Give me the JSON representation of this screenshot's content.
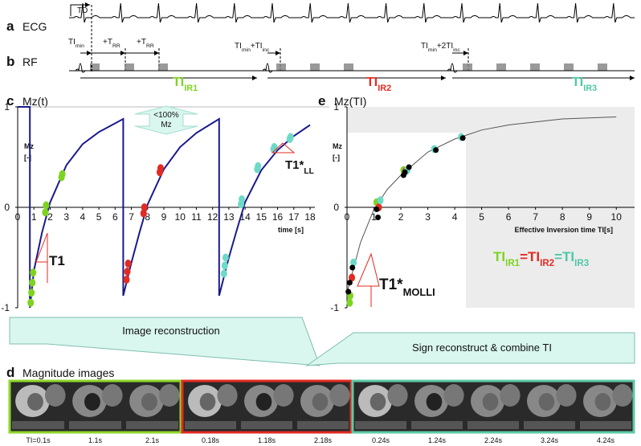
{
  "panel_a": {
    "letter": "a",
    "label": "ECG",
    "delay": "TD"
  },
  "panel_b": {
    "letter": "b",
    "label": "RF",
    "timings": [
      [
        {
          "text": "TI"
        },
        {
          "text": "min",
          "sub": true
        }
      ],
      [
        {
          "text": "+T"
        },
        {
          "text": "RR",
          "sub": true
        }
      ],
      [
        {
          "text": "+T"
        },
        {
          "text": "RR",
          "sub": true
        }
      ],
      [
        {
          "text": "TI"
        },
        {
          "text": "min",
          "sub": true
        },
        {
          "text": "+TI"
        },
        {
          "text": "inc",
          "sub": true
        }
      ],
      [
        {
          "text": "TI"
        },
        {
          "text": "min",
          "sub": true
        },
        {
          "text": "+2TI"
        },
        {
          "text": "inc",
          "sub": true
        }
      ]
    ],
    "inversions": [
      [
        {
          "text": "TI",
          "color": "#7ed321"
        },
        {
          "text": "IR1",
          "sub": true,
          "color": "#7ed321"
        }
      ],
      [
        {
          "text": "TI",
          "color": "#e32b22"
        },
        {
          "text": "IR2",
          "sub": true,
          "color": "#e32b22"
        }
      ],
      [
        {
          "text": "TI",
          "color": "#4fc7a9"
        },
        {
          "text": "IR3",
          "sub": true,
          "color": "#4fc7a9"
        }
      ]
    ]
  },
  "chart_data": [
    {
      "type": "line",
      "letter": "c",
      "title": "Mz(t)",
      "y_label": [
        "Mz",
        "[-]"
      ],
      "x_label": "time [s]",
      "xlim": [
        0,
        18
      ],
      "xticks": [
        0,
        1,
        2,
        3,
        4,
        5,
        6,
        7,
        8,
        9,
        10,
        11,
        12,
        13,
        14,
        15,
        16,
        17,
        18
      ],
      "ylim": [
        -1,
        1
      ],
      "yticks": [
        -1,
        0,
        1
      ],
      "series": [
        {
          "color": "#1a1a8c",
          "style": "line",
          "x": [
            0,
            0.75,
            0.75,
            1,
            1.5,
            2,
            3,
            4,
            5,
            6.5,
            6.5,
            7,
            7.5,
            8,
            9,
            10,
            11,
            12.4,
            12.4,
            13,
            13.5,
            14,
            15,
            16,
            17,
            18
          ],
          "values": [
            1,
            1,
            -1,
            -0.63,
            -0.25,
            0.05,
            0.42,
            0.63,
            0.75,
            0.88,
            -0.88,
            -0.55,
            -0.25,
            0.03,
            0.38,
            0.6,
            0.74,
            0.88,
            -0.88,
            -0.5,
            -0.22,
            0.05,
            0.37,
            0.57,
            0.71,
            0.82
          ]
        },
        {
          "color": "#7ed321",
          "style": "markers",
          "x": [
            0.8,
            0.85,
            0.9,
            0.95,
            1.7,
            1.75,
            2.7,
            2.75
          ],
          "values": [
            -0.95,
            -0.85,
            -0.75,
            -0.65,
            -0.05,
            0.02,
            0.3,
            0.33
          ]
        },
        {
          "color": "#e32b22",
          "style": "markers",
          "x": [
            6.7,
            6.75,
            6.8,
            7.75,
            7.8,
            8.75,
            8.8
          ],
          "values": [
            -0.72,
            -0.64,
            -0.56,
            -0.06,
            0.0,
            0.35,
            0.39
          ]
        },
        {
          "color": "#6fd9c8",
          "style": "markers",
          "x": [
            12.7,
            12.75,
            12.8,
            13.75,
            13.8,
            14.75,
            14.8,
            15.75,
            15.8,
            16.75,
            16.8
          ],
          "values": [
            -0.66,
            -0.58,
            -0.5,
            0.03,
            0.08,
            0.38,
            0.41,
            0.58,
            0.6,
            0.68,
            0.7
          ]
        }
      ],
      "annotations": {
        "margin": [
          "<100%",
          "Mz"
        ],
        "t1": [
          {
            "text": "T1"
          }
        ],
        "t1_ll": [
          {
            "text": "T1*"
          },
          {
            "text": "LL",
            "sub": true
          }
        ]
      }
    },
    {
      "type": "line",
      "letter": "e",
      "title": "Mz(TI)",
      "y_label": [
        "Mz",
        "[-]"
      ],
      "x_label": "Effective Inversion time TI[s]",
      "xlim": [
        0,
        10.5
      ],
      "xticks": [
        0,
        1,
        2,
        3,
        4,
        5,
        6,
        7,
        8,
        9,
        10
      ],
      "ylim": [
        -1,
        1
      ],
      "yticks": [
        -1,
        0,
        1
      ],
      "series": [
        {
          "color": "#555555",
          "style": "line",
          "x": [
            0,
            0.5,
            1,
            1.5,
            2,
            3,
            4,
            5,
            6,
            8,
            10
          ],
          "values": [
            -0.85,
            -0.35,
            -0.02,
            0.18,
            0.32,
            0.55,
            0.68,
            0.77,
            0.82,
            0.88,
            0.9
          ]
        },
        {
          "color": "#7ed321",
          "style": "markers",
          "x": [
            0.1,
            0.12,
            1.1,
            2.1
          ],
          "values": [
            -0.95,
            -0.88,
            0.05,
            0.37
          ]
        },
        {
          "color": "#e32b22",
          "style": "markers",
          "x": [
            0.18,
            1.18,
            2.18
          ],
          "values": [
            -0.7,
            0.0,
            0.36
          ]
        },
        {
          "color": "#6fd9c8",
          "style": "markers",
          "x": [
            0.24,
            1.24,
            2.24,
            3.24,
            4.24
          ],
          "values": [
            -0.55,
            0.07,
            0.37,
            0.58,
            0.7
          ]
        },
        {
          "color": "#000000",
          "style": "markers",
          "x": [
            0.05,
            0.1,
            0.2,
            1.1,
            1.15,
            2.1,
            2.15,
            2.3,
            3.3,
            4.3
          ],
          "values": [
            -0.84,
            -0.75,
            -0.6,
            -0.02,
            -0.1,
            0.32,
            0.35,
            0.4,
            0.57,
            0.69
          ]
        }
      ],
      "annotations": {
        "t1_molli": [
          {
            "text": "T1*"
          },
          {
            "text": "MOLLI",
            "sub": true
          }
        ],
        "equation": [
          {
            "text": "TI",
            "color": "#7ed321"
          },
          {
            "text": "IR1",
            "sub": true,
            "color": "#7ed321"
          },
          {
            "text": "=",
            "color": "#e32b22"
          },
          {
            "text": "TI",
            "color": "#e32b22"
          },
          {
            "text": "IR2",
            "sub": true,
            "color": "#e32b22"
          },
          {
            "text": "=",
            "color": "#4fc7a9"
          },
          {
            "text": "TI",
            "color": "#4fc7a9"
          },
          {
            "text": "IR3",
            "sub": true,
            "color": "#4fc7a9"
          }
        ]
      }
    }
  ],
  "arrows": [
    "Image reconstruction",
    "Sign reconstruct & combine TI"
  ],
  "panel_d": {
    "letter": "d",
    "title": "Magnitude images",
    "groups": [
      {
        "color": "#8ed629",
        "captions": [
          "TI=0.1s",
          "1.1s",
          "2.1s"
        ]
      },
      {
        "color": "#e32b22",
        "captions": [
          "0.18s",
          "1.18s",
          "2.18s"
        ]
      },
      {
        "color": "#5cc9a7",
        "captions": [
          "0.24s",
          "1.24s",
          "2.24s",
          "3.24s",
          "4.24s"
        ]
      }
    ]
  }
}
